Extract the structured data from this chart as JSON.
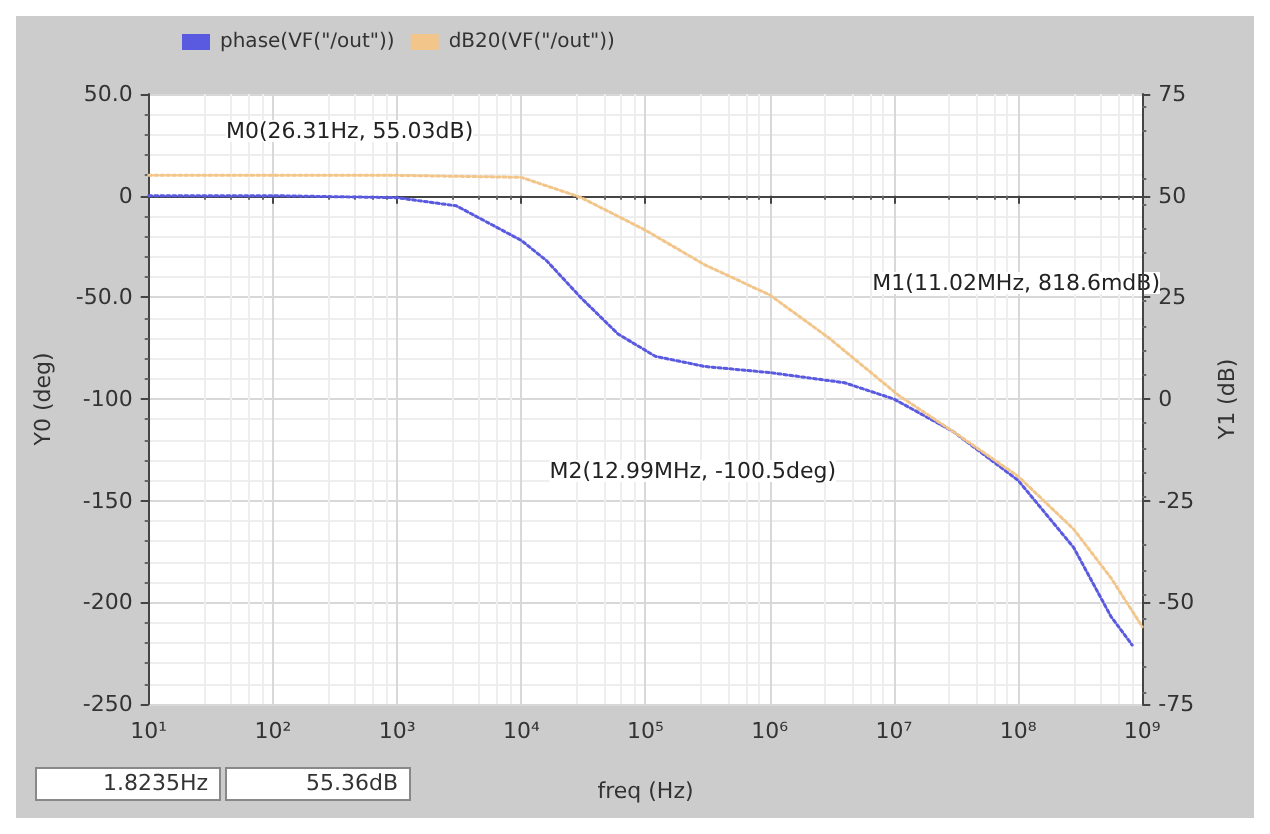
{
  "chart_data": {
    "type": "line",
    "xlabel": "freq (Hz)",
    "ylabel": "Y0 (deg)",
    "y2label": "Y1 (dB)",
    "log": "x",
    "grid": true,
    "legend": "top left",
    "line_style": "dotted",
    "marker": "none",
    "xlim": [
      10,
      1000000000
    ],
    "xticks": [
      {
        "value": 10,
        "label": "10¹"
      },
      {
        "value": 100,
        "label": "10²"
      },
      {
        "value": 1000,
        "label": "10³"
      },
      {
        "value": 10000,
        "label": "10⁴"
      },
      {
        "value": 100000,
        "label": "10⁵"
      },
      {
        "value": 1000000,
        "label": "10⁶"
      },
      {
        "value": 10000000,
        "label": "10⁷"
      },
      {
        "value": 100000000,
        "label": "10⁸"
      },
      {
        "value": 1000000000,
        "label": "10⁹"
      }
    ],
    "ylim": [
      -250,
      50
    ],
    "yticks": [
      {
        "value": 50,
        "label": "50.0"
      },
      0,
      {
        "value": -50,
        "label": "-50.0"
      },
      -100,
      -150,
      -200,
      -250
    ],
    "y2lim": [
      -75,
      75
    ],
    "y2ticks": [
      75,
      50,
      25,
      0,
      -25,
      -50,
      -75
    ],
    "series": [
      {
        "name": "phase(VF(\"/out\"))",
        "color": "#5a5ae0",
        "x": [
          10,
          100,
          1000,
          3000,
          10000,
          16000,
          30000,
          60000,
          120000,
          300000,
          1000000,
          4000000,
          10000000,
          30000000,
          100000000,
          280000000,
          560000000,
          830000000
        ],
        "values": [
          0,
          0,
          -1,
          -5,
          -22,
          -32,
          -50,
          -68,
          -79,
          -84,
          -87,
          -92,
          -100,
          -116,
          -140,
          -173,
          -207,
          -221
        ]
      },
      {
        "name": "dB20(VF(\"/out\"))",
        "color": "#f2c58a",
        "axis": "y2",
        "x": [
          10,
          100,
          1000,
          10000,
          30000,
          100000,
          300000,
          1000000,
          3000000,
          11020000,
          30000000,
          100000000,
          280000000,
          560000000,
          1000000000
        ],
        "values": [
          55,
          55,
          55,
          54.5,
          49.6,
          41.5,
          33,
          25.6,
          15,
          0.8,
          -8,
          -19,
          -32,
          -44,
          -56
        ]
      }
    ],
    "annotations": [
      "M0(26.31Hz, 55.03dB)",
      "M1(11.02MHz, 818.6mdB)",
      "M2(12.99MHz, -100.5deg)",
      "1.8235Hz",
      "55.36dB"
    ]
  }
}
